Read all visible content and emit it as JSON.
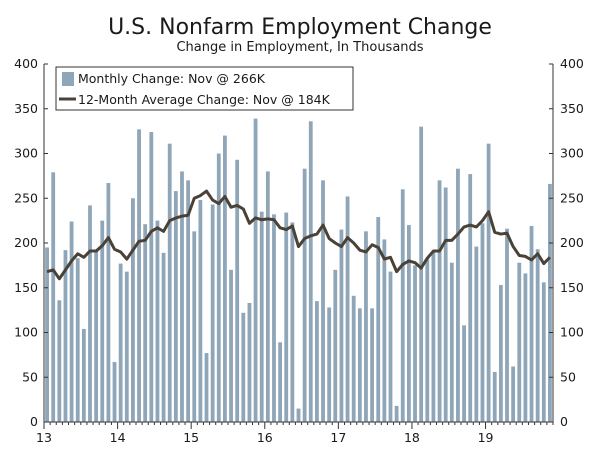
{
  "chart_data": {
    "type": "bar",
    "title": "U.S. Nonfarm Employment Change",
    "subtitle": "Change in Employment, In Thousands",
    "xlabel": "",
    "ylabel": "",
    "ylim": [
      0,
      400
    ],
    "yticks": [
      0,
      50,
      100,
      150,
      200,
      250,
      300,
      350,
      400
    ],
    "xtick_labels": [
      "13",
      "14",
      "15",
      "16",
      "17",
      "18",
      "19"
    ],
    "categories": [
      "Jan 2013",
      "Feb 2013",
      "Mar 2013",
      "Apr 2013",
      "May 2013",
      "Jun 2013",
      "Jul 2013",
      "Aug 2013",
      "Sep 2013",
      "Oct 2013",
      "Nov 2013",
      "Dec 2013",
      "Jan 2014",
      "Feb 2014",
      "Mar 2014",
      "Apr 2014",
      "May 2014",
      "Jun 2014",
      "Jul 2014",
      "Aug 2014",
      "Sep 2014",
      "Oct 2014",
      "Nov 2014",
      "Dec 2014",
      "Jan 2015",
      "Feb 2015",
      "Mar 2015",
      "Apr 2015",
      "May 2015",
      "Jun 2015",
      "Jul 2015",
      "Aug 2015",
      "Sep 2015",
      "Oct 2015",
      "Nov 2015",
      "Dec 2015",
      "Jan 2016",
      "Feb 2016",
      "Mar 2016",
      "Apr 2016",
      "May 2016",
      "Jun 2016",
      "Jul 2016",
      "Aug 2016",
      "Sep 2016",
      "Oct 2016",
      "Nov 2016",
      "Dec 2016",
      "Jan 2017",
      "Feb 2017",
      "Mar 2017",
      "Apr 2017",
      "May 2017",
      "Jun 2017",
      "Jul 2017",
      "Aug 2017",
      "Sep 2017",
      "Oct 2017",
      "Nov 2017",
      "Dec 2017",
      "Jan 2018",
      "Feb 2018",
      "Mar 2018",
      "Apr 2018",
      "May 2018",
      "Jun 2018",
      "Jul 2018",
      "Aug 2018",
      "Sep 2018",
      "Oct 2018",
      "Nov 2018",
      "Dec 2018",
      "Jan 2019",
      "Feb 2019",
      "Mar 2019",
      "Apr 2019",
      "May 2019",
      "Jun 2019",
      "Jul 2019",
      "Aug 2019",
      "Sep 2019",
      "Oct 2019",
      "Nov 2019"
    ],
    "series": [
      {
        "name": "Monthly Change: Nov @ 266K",
        "kind": "bar",
        "color": "#8fa5b8",
        "values": [
          195,
          279,
          136,
          192,
          224,
          183,
          104,
          242,
          191,
          225,
          267,
          67,
          177,
          168,
          250,
          327,
          221,
          324,
          225,
          189,
          311,
          258,
          280,
          270,
          213,
          248,
          77,
          243,
          300,
          320,
          170,
          293,
          122,
          133,
          339,
          235,
          280,
          232,
          89,
          234,
          223,
          15,
          283,
          336,
          135,
          270,
          128,
          170,
          215,
          252,
          141,
          127,
          213,
          127,
          229,
          204,
          168,
          18,
          260,
          220,
          175,
          330,
          182,
          190,
          270,
          262,
          178,
          283,
          108,
          277,
          196,
          222,
          311,
          56,
          153,
          216,
          62,
          178,
          166,
          219,
          193,
          156,
          266
        ]
      },
      {
        "name": "12-Month Average Change: Nov @ 184K",
        "kind": "line",
        "color": "#4a4236",
        "values": [
          168,
          170,
          160,
          170,
          180,
          188,
          184,
          191,
          191,
          197,
          206,
          193,
          190,
          182,
          192,
          202,
          203,
          213,
          217,
          213,
          225,
          228,
          230,
          231,
          250,
          253,
          258,
          248,
          244,
          252,
          240,
          242,
          238,
          222,
          228,
          226,
          227,
          226,
          217,
          215,
          219,
          196,
          205,
          208,
          210,
          220,
          205,
          200,
          196,
          206,
          200,
          192,
          190,
          198,
          195,
          182,
          184,
          168,
          176,
          180,
          178,
          172,
          183,
          191,
          191,
          203,
          203,
          210,
          218,
          220,
          218,
          225,
          235,
          212,
          210,
          211,
          196,
          186,
          185,
          181,
          188,
          177,
          184
        ]
      }
    ],
    "legend": {
      "position": "top-left",
      "entries": [
        "Monthly Change: Nov @ 266K",
        "12-Month Average Change: Nov @ 184K"
      ]
    },
    "grid": false
  }
}
